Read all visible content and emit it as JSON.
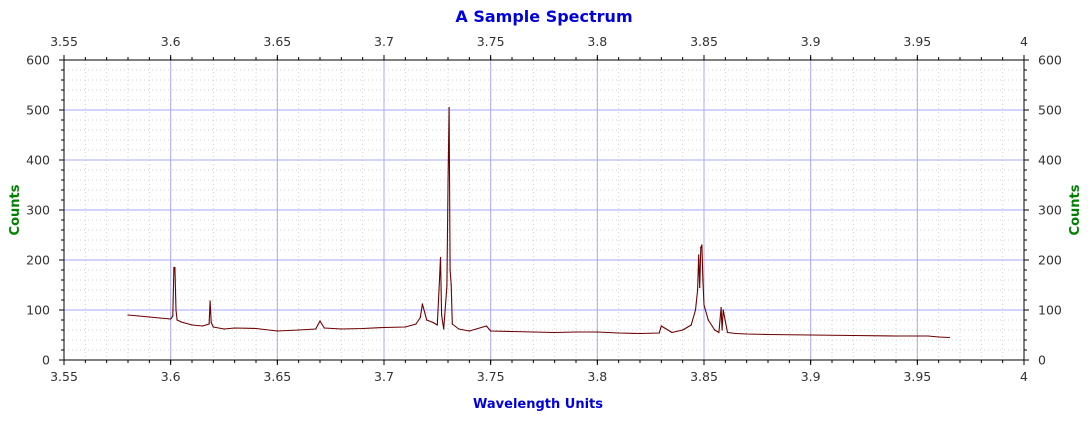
{
  "chart_data": {
    "type": "line",
    "title": "A Sample Spectrum",
    "xlabel": "Wavelength Units",
    "ylabel": "Counts",
    "y2label": "Counts",
    "xlim": [
      3.55,
      4.0
    ],
    "ylim": [
      0,
      600
    ],
    "x_ticks": [
      "3.55",
      "3.6",
      "3.65",
      "3.7",
      "3.75",
      "3.8",
      "3.85",
      "3.9",
      "3.95",
      "4"
    ],
    "x_tick_values": [
      3.55,
      3.6,
      3.65,
      3.7,
      3.75,
      3.8,
      3.85,
      3.9,
      3.95,
      4.0
    ],
    "y_ticks": [
      "0",
      "100",
      "200",
      "300",
      "400",
      "500",
      "600"
    ],
    "y_tick_values": [
      0,
      100,
      200,
      300,
      400,
      500,
      600
    ],
    "grid": "major and minor",
    "series": [
      {
        "color": "#6b0000",
        "x": [
          3.58,
          3.585,
          3.59,
          3.595,
          3.6,
          3.601,
          3.6015,
          3.602,
          3.6025,
          3.603,
          3.605,
          3.61,
          3.615,
          3.618,
          3.6185,
          3.619,
          3.62,
          3.625,
          3.63,
          3.64,
          3.65,
          3.66,
          3.668,
          3.67,
          3.672,
          3.68,
          3.69,
          3.7,
          3.71,
          3.715,
          3.717,
          3.718,
          3.72,
          3.723,
          3.725,
          3.7258,
          3.7265,
          3.727,
          3.728,
          3.7295,
          3.73,
          3.7305,
          3.731,
          3.7315,
          3.732,
          3.735,
          3.74,
          3.748,
          3.75,
          3.76,
          3.77,
          3.78,
          3.79,
          3.8,
          3.81,
          3.82,
          3.829,
          3.83,
          3.835,
          3.84,
          3.844,
          3.846,
          3.847,
          3.8475,
          3.848,
          3.8485,
          3.849,
          3.8495,
          3.85,
          3.852,
          3.855,
          3.857,
          3.858,
          3.8585,
          3.859,
          3.861,
          3.865,
          3.87,
          3.88,
          3.9,
          3.92,
          3.94,
          3.955,
          3.96,
          3.965
        ],
        "y": [
          90,
          88,
          86,
          84,
          82,
          88,
          185,
          185,
          100,
          80,
          76,
          70,
          68,
          72,
          118,
          75,
          66,
          62,
          64,
          63,
          58,
          60,
          62,
          78,
          64,
          62,
          63,
          65,
          66,
          72,
          85,
          112,
          80,
          75,
          70,
          140,
          205,
          90,
          62,
          148,
          350,
          505,
          180,
          150,
          72,
          62,
          58,
          68,
          58,
          57,
          56,
          55,
          56,
          56,
          54,
          53,
          54,
          68,
          55,
          60,
          70,
          100,
          140,
          210,
          145,
          225,
          230,
          160,
          110,
          80,
          60,
          55,
          105,
          60,
          100,
          55,
          53,
          52,
          51,
          50,
          49,
          48,
          48,
          46,
          45
        ]
      }
    ]
  }
}
